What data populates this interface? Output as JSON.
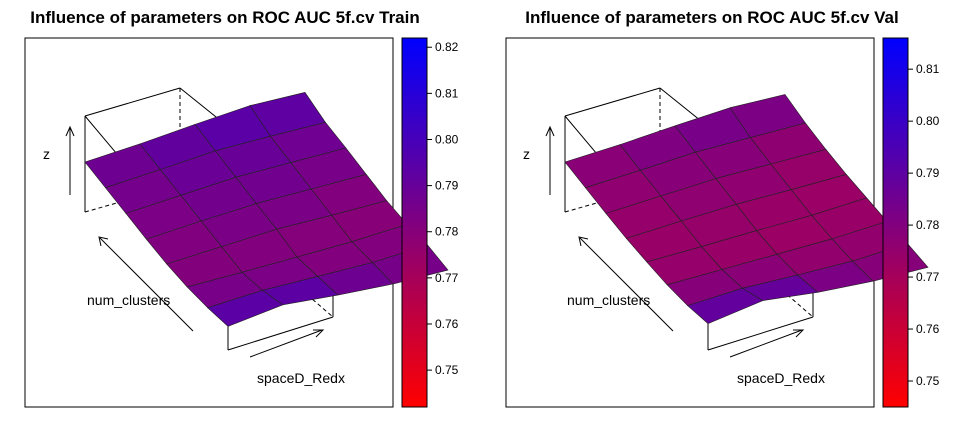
{
  "chart_data": [
    {
      "type": "surface",
      "title": "Influence of parameters on ROC AUC 5f.cv Train",
      "xlabel": "num_clusters",
      "ylabel": "spaceD_Redx",
      "zlabel": "z",
      "colorbar": {
        "ticks": [
          "0.75",
          "0.76",
          "0.77",
          "0.78",
          "0.79",
          "0.80",
          "0.81",
          "0.82"
        ],
        "range": [
          0.742,
          0.822
        ],
        "low_color": "#ff0000",
        "high_color": "#0000ff"
      },
      "z_grid": [
        [
          0.787,
          0.79,
          0.795,
          0.799,
          0.795
        ],
        [
          0.785,
          0.788,
          0.792,
          0.79,
          0.787
        ],
        [
          0.783,
          0.786,
          0.789,
          0.787,
          0.785
        ],
        [
          0.781,
          0.784,
          0.786,
          0.784,
          0.782
        ],
        [
          0.78,
          0.782,
          0.784,
          0.781,
          0.779
        ],
        [
          0.782,
          0.78,
          0.779,
          0.778,
          0.78
        ],
        [
          0.787,
          0.789,
          0.786,
          0.783,
          0.785
        ],
        [
          0.795,
          0.803,
          0.794,
          0.787,
          0.784
        ]
      ]
    },
    {
      "type": "surface",
      "title": "Influence of parameters on ROC AUC 5f.cv Val",
      "xlabel": "num_clusters",
      "ylabel": "spaceD_Redx",
      "zlabel": "z",
      "colorbar": {
        "ticks": [
          "0.75",
          "0.76",
          "0.77",
          "0.78",
          "0.79",
          "0.80",
          "0.81"
        ],
        "range": [
          0.745,
          0.816
        ],
        "low_color": "#ff0000",
        "high_color": "#0000ff"
      },
      "z_grid": [
        [
          0.778,
          0.78,
          0.784,
          0.787,
          0.783
        ],
        [
          0.776,
          0.778,
          0.781,
          0.779,
          0.777
        ],
        [
          0.774,
          0.776,
          0.778,
          0.776,
          0.774
        ],
        [
          0.773,
          0.775,
          0.776,
          0.774,
          0.773
        ],
        [
          0.774,
          0.773,
          0.773,
          0.772,
          0.774
        ],
        [
          0.776,
          0.775,
          0.774,
          0.773,
          0.775
        ],
        [
          0.781,
          0.783,
          0.779,
          0.776,
          0.778
        ],
        [
          0.79,
          0.8,
          0.789,
          0.782,
          0.779
        ]
      ]
    }
  ]
}
